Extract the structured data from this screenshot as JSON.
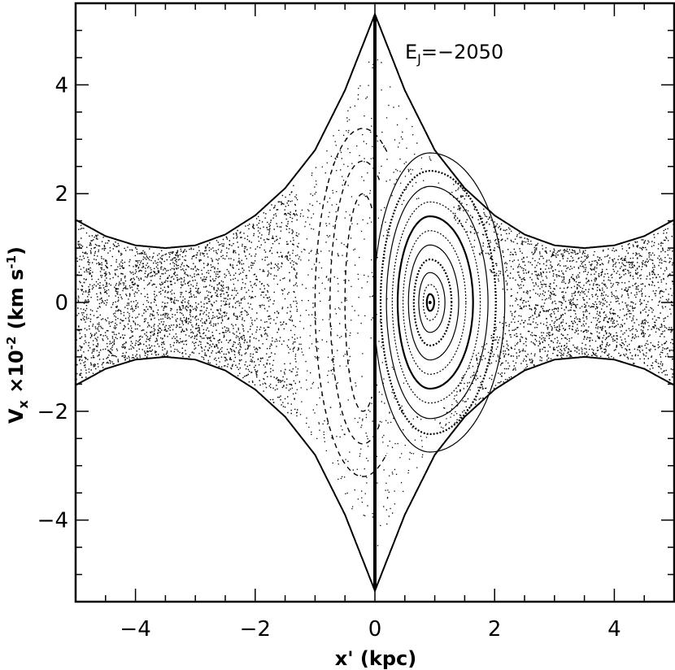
{
  "chart_data": {
    "type": "scatter",
    "title": "",
    "xlabel": "x' (kpc)",
    "ylabel": "V'x ×10⁻² (km s⁻¹)",
    "ylabel_parts": {
      "main": "V",
      "sub": "x",
      "mid": " ×10",
      "sup1": "-2",
      "units": " (km s",
      "sup2": "-1",
      "close": ")"
    },
    "xlim": [
      -5,
      5
    ],
    "ylim": [
      -5.5,
      5.5
    ],
    "xticks": [
      -4,
      -2,
      0,
      2,
      4
    ],
    "yticks": [
      -4,
      -2,
      0,
      2,
      4
    ],
    "xtick_labels": [
      "−4",
      "−2",
      "0",
      "2",
      "4"
    ],
    "ytick_labels": [
      "−4",
      "−2",
      "0",
      "2",
      "4"
    ],
    "grid": false,
    "annotation": {
      "text_main": "E",
      "text_sub": "J",
      "text_value": "=−2050",
      "x": 0.5,
      "y": 4.6
    },
    "zero_velocity_curve": {
      "x": [
        -5.0,
        -4.5,
        -4.0,
        -3.5,
        -3.0,
        -2.5,
        -2.0,
        -1.5,
        -1.0,
        -0.5,
        0.0,
        0.5,
        1.0,
        1.5,
        2.0,
        2.5,
        3.0,
        3.5,
        4.0,
        4.5,
        5.0
      ],
      "vx_pos": [
        1.52,
        1.22,
        1.05,
        1.0,
        1.05,
        1.25,
        1.6,
        2.1,
        2.8,
        3.9,
        5.3,
        3.9,
        2.8,
        2.1,
        1.6,
        1.25,
        1.05,
        1.0,
        1.05,
        1.22,
        1.52
      ]
    },
    "stable_point": {
      "x": 0.92,
      "vx": 0.0
    },
    "islands": [
      {
        "name": "",
        "center_x": 0.92,
        "rx": [
          0.07,
          0.15,
          0.25,
          0.36,
          0.48,
          0.6,
          0.72,
          0.84,
          0.97,
          1.1,
          1.25
        ],
        "ry_scale": 2.2
      }
    ]
  }
}
